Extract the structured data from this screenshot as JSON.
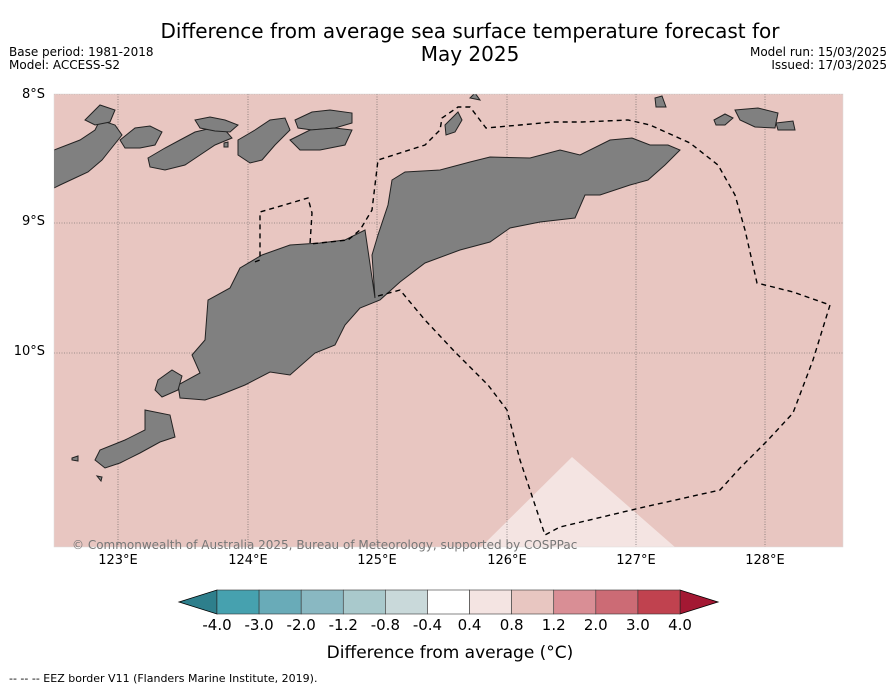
{
  "title_line1": "Difference from average sea surface temperature forecast for",
  "title_line2": "May 2025",
  "base_period": "Base period: 1981-2018",
  "model": "Model: ACCESS-S2",
  "model_run": "Model run: 15/03/2025",
  "issued": "Issued: 17/03/2025",
  "map": {
    "lat_labels": [
      "8°S",
      "9°S",
      "10°S"
    ],
    "lon_labels": [
      "123°E",
      "124°E",
      "125°E",
      "126°E",
      "127°E",
      "128°E"
    ],
    "ocean_color": "#e8c6c1",
    "land_color": "#808080",
    "anomaly_patch_color": "#f4e4e2",
    "land_features": [
      "Timor",
      "Flores",
      "Alor",
      "Wetar",
      "Savu",
      "Rote"
    ]
  },
  "credit": "© Commonwealth of Australia 2025, Bureau of Meteorology, supported by COSPPac",
  "colorbar": {
    "title": "Difference from average (°C)",
    "labels": [
      "-4.0",
      "-3.0",
      "-2.0",
      "-1.2",
      "-0.8",
      "-0.4",
      "0.4",
      "0.8",
      "1.2",
      "2.0",
      "3.0",
      "4.0"
    ],
    "colors": [
      "#46a1af",
      "#69abb8",
      "#89b8c2",
      "#a9c9cc",
      "#c9d9da",
      "#ffffff",
      "#f4e4e2",
      "#e8c6c1",
      "#d98e95",
      "#cc6b75",
      "#c0424f"
    ],
    "low_extend_color": "#2e7f8c",
    "high_extend_color": "#a31833"
  },
  "legend": "--  --  -- EEZ border V11 (Flanders Marine Institute, 2019)."
}
